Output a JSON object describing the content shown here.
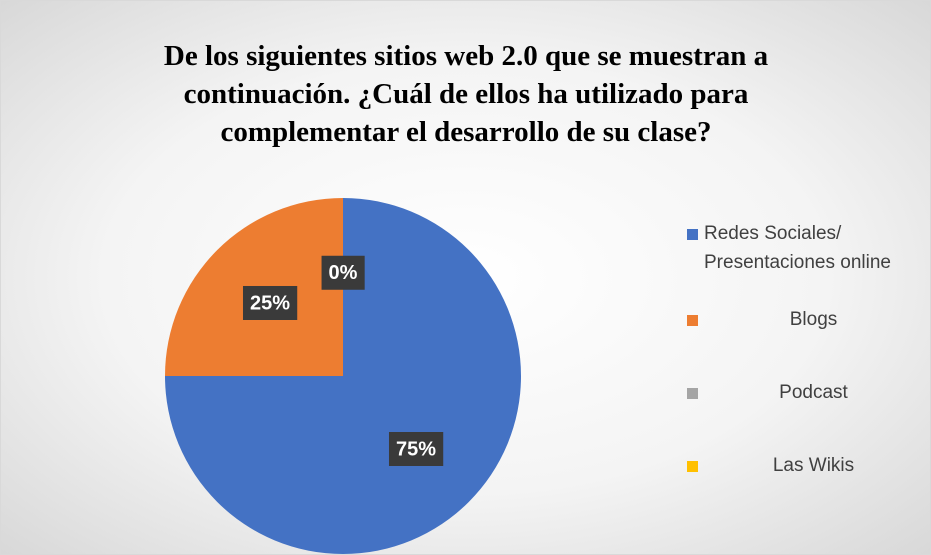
{
  "chart_data": {
    "type": "pie",
    "title": "De los siguientes sitios web 2.0 que se muestran a continuación. ¿Cuál de ellos ha utilizado para complementar el desarrollo de su clase?",
    "categories": [
      "Redes Sociales/ Presentaciones online",
      "Blogs",
      "Podcast",
      "Las Wikis"
    ],
    "values": [
      75,
      25,
      0,
      0
    ],
    "value_labels": [
      "75%",
      "25%",
      "0%",
      null
    ],
    "colors": [
      "#4472c4",
      "#ed7d31",
      "#a5a5a5",
      "#ffc000"
    ],
    "legend": "right"
  }
}
